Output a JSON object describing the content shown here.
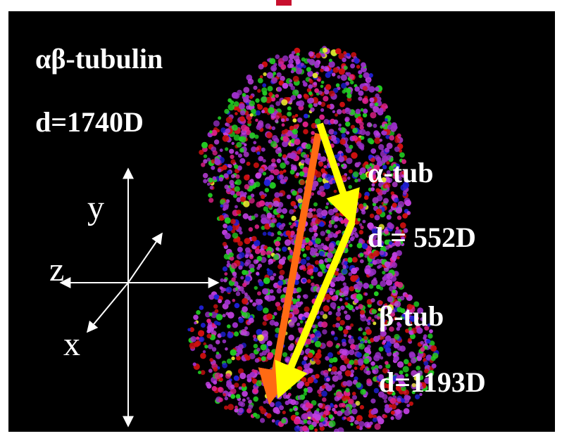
{
  "labels": {
    "complex_name": "αβ-tubulin",
    "complex_dipole": "d=1740D",
    "alpha_name": "α-tub",
    "alpha_dipole": "d = 552D",
    "beta_name": "β-tub",
    "beta_dipole": "d=1193D"
  },
  "axes": {
    "y": "y",
    "z": "z",
    "x": "x"
  },
  "colors": {
    "background": "#000000",
    "accent_mark": "#c8102e",
    "complex_arrow": "#ff6a13",
    "subunit_arrows": "#ffff00",
    "text": "#ffffff",
    "atom_colors": [
      "#9b30c8",
      "#c040e0",
      "#e0208a",
      "#d01010",
      "#22cc22",
      "#2020d8",
      "#e8e830"
    ]
  }
}
